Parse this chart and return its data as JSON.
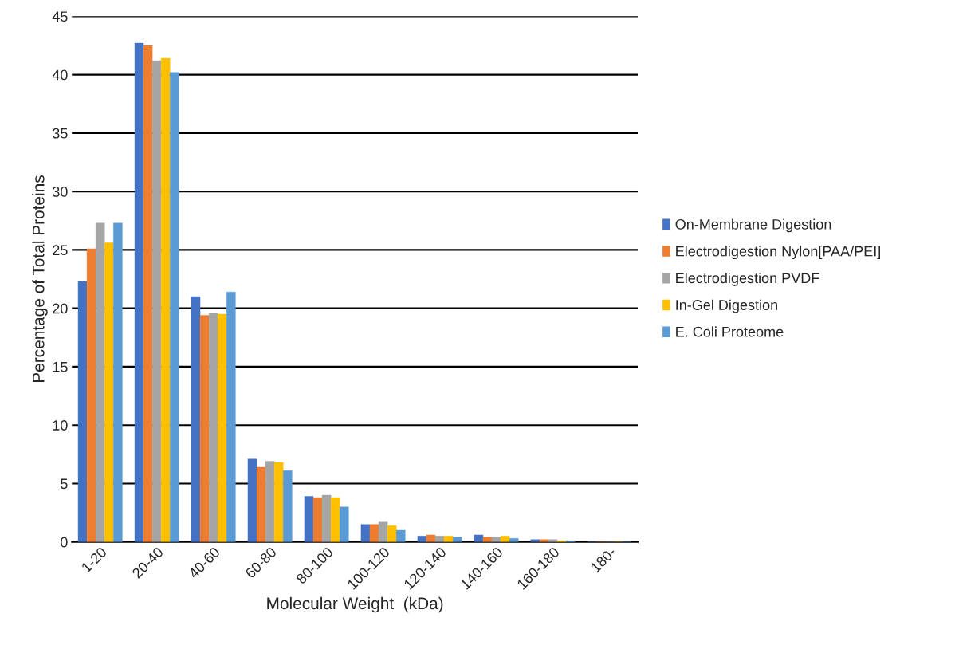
{
  "chart_data": {
    "type": "bar",
    "xlabel": "Molecular Weight  (kDa)",
    "ylabel": "Percentage of Total Proteins",
    "categories": [
      "1-20",
      "20-40",
      "40-60",
      "60-80",
      "80-100",
      "100-120",
      "120-140",
      "140-160",
      "160-180",
      "180-"
    ],
    "series": [
      {
        "name": "On-Membrane Digestion",
        "color": "#4472c4",
        "values": [
          22.3,
          42.7,
          21.0,
          7.1,
          3.9,
          1.5,
          0.5,
          0.6,
          0.2,
          0
        ]
      },
      {
        "name": "Electrodigestion Nylon[PAA/PEI]",
        "color": "#ed7d31",
        "values": [
          25.1,
          42.5,
          19.4,
          6.4,
          3.8,
          1.5,
          0.6,
          0.4,
          0.2,
          0
        ]
      },
      {
        "name": "Electrodigestion PVDF",
        "color": "#a5a5a5",
        "values": [
          27.3,
          41.2,
          19.6,
          6.9,
          4.0,
          1.7,
          0.5,
          0.4,
          0.2,
          0
        ]
      },
      {
        "name": "In-Gel Digestion",
        "color": "#ffc000",
        "values": [
          25.6,
          41.4,
          19.5,
          6.8,
          3.8,
          1.4,
          0.5,
          0.5,
          0.1,
          0
        ]
      },
      {
        "name": "E. Coli Proteome",
        "color": "#5b9bd5",
        "values": [
          27.3,
          40.2,
          21.4,
          6.1,
          3.0,
          1.0,
          0.4,
          0.3,
          0.1,
          0
        ]
      }
    ],
    "ylim": [
      0,
      45
    ],
    "yticks": [
      0,
      5,
      10,
      15,
      20,
      25,
      30,
      35,
      40,
      45
    ],
    "grid": "y",
    "legend": "right"
  }
}
